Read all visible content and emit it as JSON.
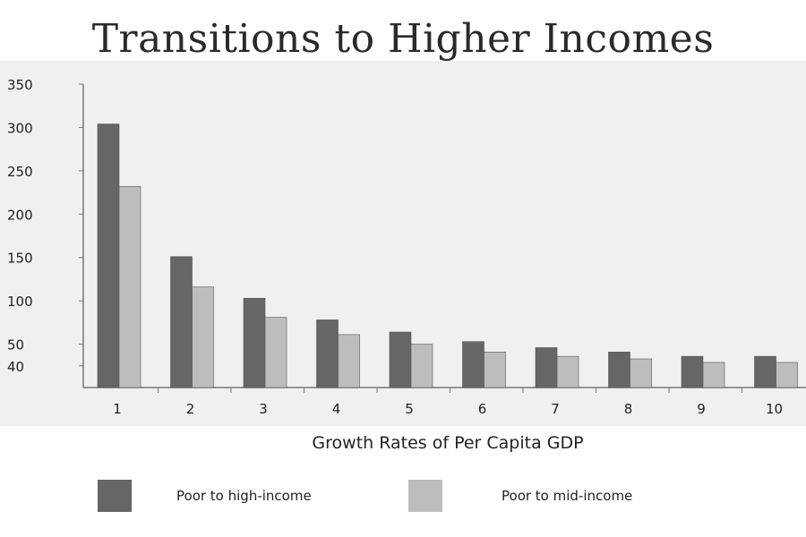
{
  "chart_data": {
    "type": "bar",
    "title": "Transitions to Higher Incomes",
    "xlabel": "Growth Rates of Per Capita GDP",
    "ylabel": "",
    "categories": [
      "1",
      "2",
      "3",
      "4",
      "5",
      "6",
      "7",
      "8",
      "9",
      "10"
    ],
    "y_ticks": [
      "40",
      "50",
      "100",
      "150",
      "200",
      "250",
      "300",
      "350"
    ],
    "ylim": [
      0,
      350
    ],
    "grid": false,
    "legend_position": "bottom",
    "series": [
      {
        "name": "Poor to high-income",
        "color": "#666666",
        "values": [
          304,
          151,
          103,
          78,
          64,
          53,
          46,
          41,
          36,
          36
        ]
      },
      {
        "name": "Poor to mid-income",
        "color": "#bdbdbd",
        "values": [
          232,
          116,
          81,
          61,
          50,
          41,
          36,
          33,
          29,
          29
        ]
      }
    ]
  }
}
